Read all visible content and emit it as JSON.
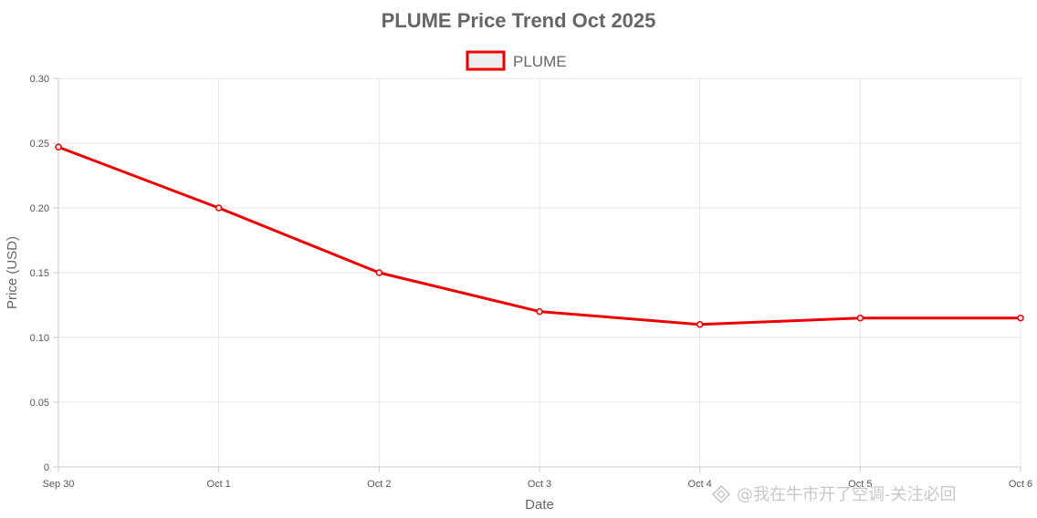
{
  "colors": {
    "line": "#ee0000",
    "legend_fill": "#eeeeee",
    "grid": "#e5e5e5",
    "axis": "#cccccc",
    "text": "#666666",
    "tick_text": "#555555"
  },
  "chart_data": {
    "type": "line",
    "title": "PLUME Price Trend Oct 2025",
    "xlabel": "Date",
    "ylabel": "Price (USD)",
    "categories": [
      "Sep 30",
      "Oct 1",
      "Oct 2",
      "Oct 3",
      "Oct 4",
      "Oct 5",
      "Oct 6"
    ],
    "series": [
      {
        "name": "PLUME",
        "values": [
          0.247,
          0.2,
          0.15,
          0.12,
          0.11,
          0.115,
          0.115
        ]
      }
    ],
    "ylim": [
      0,
      0.3
    ],
    "yticks": [
      "0",
      "0.05",
      "0.10",
      "0.15",
      "0.20",
      "0.25",
      "0.30"
    ],
    "grid": true,
    "legend": "top-center"
  },
  "watermark": "@我在牛市开了空调-关注必回",
  "watermark_icon": "logo-icon"
}
